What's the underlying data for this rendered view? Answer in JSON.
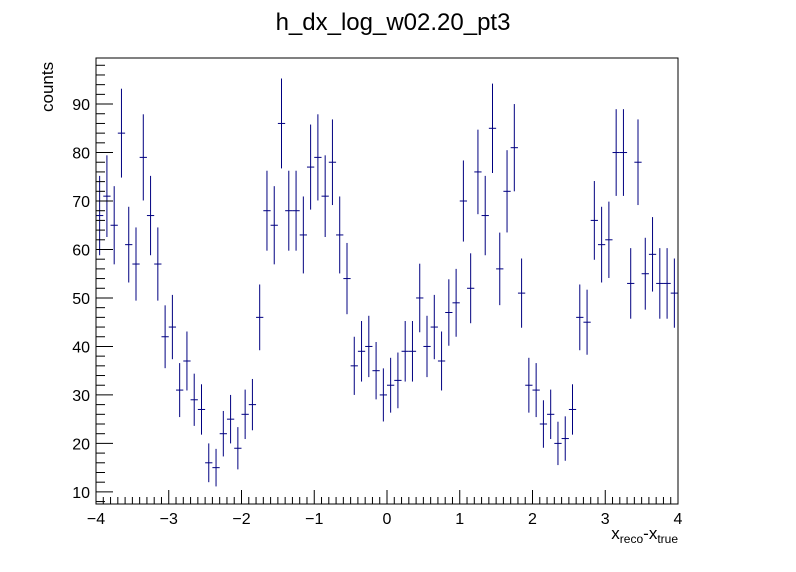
{
  "chart_data": {
    "type": "scatter",
    "title": "h_dx_log_w02.20_pt3",
    "ylabel": "counts",
    "xlabel": {
      "base1": "x",
      "sub1": "reco",
      "dash": "-",
      "base2": "x",
      "sub2": "true"
    },
    "xlim": [
      -4,
      4
    ],
    "ylim": [
      7.5,
      99.5
    ],
    "x_ticks": [
      -4,
      -3,
      -2,
      -1,
      0,
      1,
      2,
      3,
      4
    ],
    "x_tick_labels": [
      "−4",
      "−3",
      "−2",
      "−1",
      "0",
      "1",
      "2",
      "3",
      "4"
    ],
    "y_ticks": [
      10,
      20,
      30,
      40,
      50,
      60,
      70,
      80,
      90
    ],
    "y_tick_labels": [
      "10",
      "20",
      "30",
      "40",
      "50",
      "60",
      "70",
      "80",
      "90"
    ],
    "grid": false,
    "bin_width": 0.1,
    "error_bars": "sqrt(N)",
    "colors": {
      "marker": "#000080",
      "axis": "#000000",
      "background": "#ffffff"
    },
    "x": [
      -3.95,
      -3.85,
      -3.75,
      -3.65,
      -3.55,
      -3.45,
      -3.35,
      -3.25,
      -3.15,
      -3.05,
      -2.95,
      -2.85,
      -2.75,
      -2.65,
      -2.55,
      -2.45,
      -2.35,
      -2.25,
      -2.15,
      -2.05,
      -1.95,
      -1.85,
      -1.75,
      -1.65,
      -1.55,
      -1.45,
      -1.35,
      -1.25,
      -1.15,
      -1.05,
      -0.95,
      -0.85,
      -0.75,
      -0.65,
      -0.55,
      -0.45,
      -0.35,
      -0.25,
      -0.15,
      -0.05,
      0.05,
      0.15,
      0.25,
      0.35,
      0.45,
      0.55,
      0.65,
      0.75,
      0.85,
      0.95,
      1.05,
      1.15,
      1.25,
      1.35,
      1.45,
      1.55,
      1.65,
      1.75,
      1.85,
      1.95,
      2.05,
      2.15,
      2.25,
      2.35,
      2.45,
      2.55,
      2.65,
      2.75,
      2.85,
      2.95,
      3.05,
      3.15,
      3.25,
      3.35,
      3.45,
      3.55,
      3.65,
      3.75,
      3.85,
      3.95
    ],
    "y": [
      67,
      71,
      65,
      84,
      61,
      57,
      79,
      67,
      57,
      42,
      44,
      31,
      37,
      29,
      27,
      16,
      15,
      22,
      25,
      19,
      26,
      28,
      46,
      68,
      65,
      86,
      68,
      68,
      63,
      77,
      79,
      71,
      78,
      63,
      54,
      36,
      39,
      40,
      35,
      30,
      32,
      33,
      39,
      39,
      50,
      40,
      44,
      37,
      47,
      49,
      70,
      52,
      76,
      67,
      85,
      56,
      72,
      81,
      51,
      32,
      31,
      24,
      26,
      20,
      21,
      27,
      46,
      45,
      66,
      61,
      62,
      80,
      80,
      53,
      78,
      55,
      59,
      53,
      53,
      51
    ]
  }
}
